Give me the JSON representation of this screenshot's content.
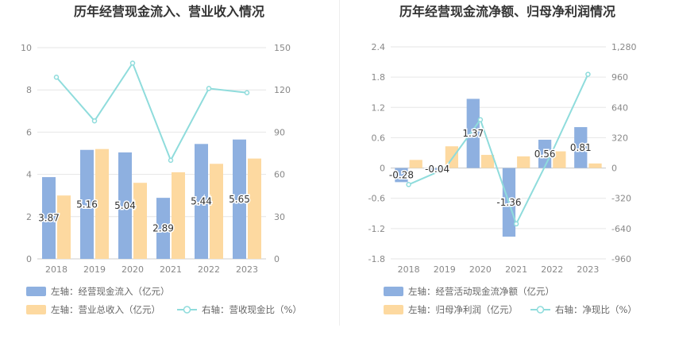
{
  "colors": {
    "blue": "#8eb0e0",
    "orange": "#fdd9a0",
    "teal": "#8fdcdc",
    "grid": "#e6e6e6",
    "text": "#888888"
  },
  "chart_data": [
    {
      "type": "bar",
      "title": "历年经营现金流入、营业收入情况",
      "categories": [
        "2018",
        "2019",
        "2020",
        "2021",
        "2022",
        "2023"
      ],
      "left_axis": {
        "ticks": [
          "0",
          "2",
          "4",
          "6",
          "8",
          "10"
        ],
        "ylim": [
          0,
          10
        ]
      },
      "right_axis": {
        "ticks": [
          "0",
          "30",
          "60",
          "90",
          "120",
          "150"
        ],
        "ylim": [
          0,
          150
        ]
      },
      "series": [
        {
          "name": "左轴：经营现金流入（亿元）",
          "type": "bar",
          "axis": "left",
          "color": "#8eb0e0",
          "values": [
            3.87,
            5.16,
            5.04,
            2.89,
            5.44,
            5.65
          ],
          "labels": [
            "3.87",
            "5.16",
            "5.04",
            "2.89",
            "5.44",
            "5.65"
          ]
        },
        {
          "name": "左轴：营业总收入（亿元）",
          "type": "bar",
          "axis": "left",
          "color": "#fdd9a0",
          "values": [
            3.0,
            5.2,
            3.6,
            4.1,
            4.5,
            4.75
          ]
        },
        {
          "name": "右轴：营收现金比（%）",
          "type": "line",
          "axis": "right",
          "color": "#8fdcdc",
          "values": [
            129,
            98,
            139,
            70,
            121,
            118
          ]
        }
      ],
      "grid": true,
      "legend_position": "bottom"
    },
    {
      "type": "bar",
      "title": "历年经营现金流净额、归母净利润情况",
      "categories": [
        "2018",
        "2019",
        "2020",
        "2021",
        "2022",
        "2023"
      ],
      "left_axis": {
        "ticks": [
          "-1.8",
          "-1.2",
          "-0.6",
          "0",
          "0.6",
          "1.2",
          "1.8",
          "2.4"
        ],
        "ylim": [
          -1.8,
          2.4
        ]
      },
      "right_axis": {
        "ticks": [
          "-960",
          "-640",
          "-320",
          "0",
          "320",
          "640",
          "960",
          "1,280"
        ],
        "ylim": [
          -960,
          1280
        ]
      },
      "series": [
        {
          "name": "左轴：经营活动现金流净额（亿元）",
          "type": "bar",
          "axis": "left",
          "color": "#8eb0e0",
          "values": [
            -0.28,
            -0.04,
            1.37,
            -1.36,
            0.56,
            0.81
          ],
          "labels": [
            "-0.28",
            "-0.04",
            "1.37",
            "-1.36",
            "0.56",
            "0.81"
          ]
        },
        {
          "name": "左轴：归母净利润（亿元）",
          "type": "bar",
          "axis": "left",
          "color": "#fdd9a0",
          "values": [
            0.16,
            0.43,
            0.26,
            0.23,
            0.33,
            0.09
          ]
        },
        {
          "name": "右轴：净现比（%）",
          "type": "line",
          "axis": "right",
          "color": "#8fdcdc",
          "values": [
            -175,
            -10,
            510,
            -590,
            170,
            990
          ]
        }
      ],
      "grid": true,
      "legend_position": "bottom"
    }
  ]
}
